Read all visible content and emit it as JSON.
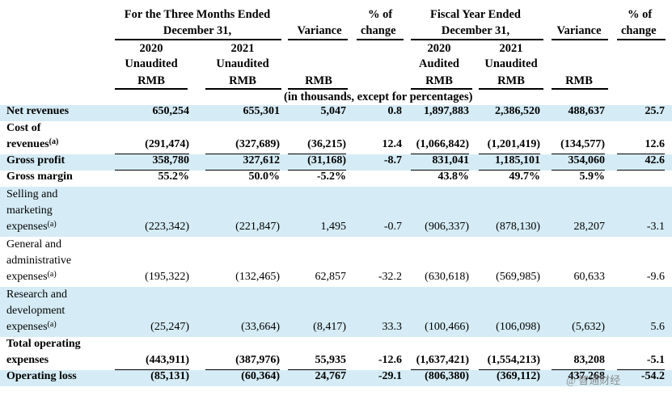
{
  "header": {
    "three_months": "For the Three Months Ended",
    "three_months_2": "December 31,",
    "fiscal_year": "Fiscal Year Ended",
    "fiscal_year_2": "December 31,",
    "variance": "Variance",
    "pct_of": "% of",
    "pct_change": "change",
    "y2020": "2020",
    "y2021": "2021",
    "unaudited": "Unaudited",
    "audited": "Audited",
    "rmb": "RMB",
    "unit_note": "(in thousands, except for percentages)"
  },
  "rows": [
    {
      "label": [
        "Net revenues"
      ],
      "bold": true,
      "shaded": true,
      "values": [
        "650,254",
        "655,301",
        "5,047",
        "0.8",
        "1,897,883",
        "2,386,520",
        "488,637",
        "25.7"
      ]
    },
    {
      "label": [
        "Cost of",
        "revenues"
      ],
      "sub": "(a)",
      "bold": true,
      "shaded": false,
      "values": [
        "(291,474)",
        "(327,689)",
        "(36,215)",
        "12.4",
        "(1,066,842)",
        "(1,201,419)",
        "(134,577)",
        "12.6"
      ]
    },
    {
      "label": [
        "Gross profit"
      ],
      "bold": true,
      "shaded": true,
      "values": [
        "358,780",
        "327,612",
        "(31,168)",
        "-8.7",
        "831,041",
        "1,185,101",
        "354,060",
        "42.6"
      ]
    },
    {
      "label": [
        "Gross margin"
      ],
      "bold": true,
      "shaded": false,
      "values": [
        "55.2%",
        "50.0%",
        "-5.2%",
        "",
        "43.8%",
        "49.7%",
        "5.9%",
        ""
      ]
    },
    {
      "label": [
        "Selling and",
        "marketing",
        "expenses"
      ],
      "sub": "(a)",
      "bold": false,
      "shaded": true,
      "values": [
        "(223,342)",
        "(221,847)",
        "1,495",
        "-0.7",
        "(906,337)",
        "(878,130)",
        "28,207",
        "-3.1"
      ]
    },
    {
      "label": [
        "General and",
        "administrative",
        "expenses"
      ],
      "sub": "(a)",
      "bold": false,
      "shaded": false,
      "values": [
        "(195,322)",
        "(132,465)",
        "62,857",
        "-32.2",
        "(630,618)",
        "(569,985)",
        "60,633",
        "-9.6"
      ]
    },
    {
      "label": [
        "Research and",
        "development",
        "expenses"
      ],
      "sub": "(a)",
      "bold": false,
      "shaded": true,
      "values": [
        "(25,247)",
        "(33,664)",
        "(8,417)",
        "33.3",
        "(100,466)",
        "(106,098)",
        "(5,632)",
        "5.6"
      ]
    },
    {
      "label": [
        "Total operating",
        "expenses"
      ],
      "bold": true,
      "shaded": false,
      "values": [
        "(443,911)",
        "(387,976)",
        "55,935",
        "-12.6",
        "(1,637,421)",
        "(1,554,213)",
        "83,208",
        "-5.1"
      ]
    },
    {
      "label": [
        "Operating loss"
      ],
      "bold": true,
      "shaded": true,
      "values": [
        "(85,131)",
        "(60,364)",
        "24,767",
        "-29.1",
        "(806,380)",
        "(369,112)",
        "437,268",
        "-54.2"
      ]
    }
  ],
  "watermark": "@ 智通财经"
}
